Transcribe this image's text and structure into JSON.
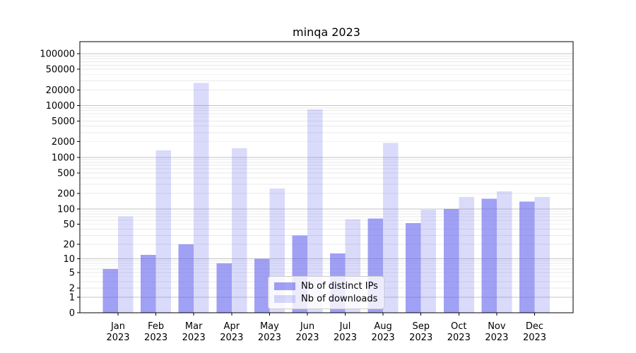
{
  "chart_data": {
    "type": "bar",
    "title": "minqa 2023",
    "categories": [
      "Jan",
      "Feb",
      "Mar",
      "Apr",
      "May",
      "Jun",
      "Jul",
      "Aug",
      "Sep",
      "Oct",
      "Nov",
      "Dec"
    ],
    "year": "2023",
    "series": [
      {
        "name": "Nb of distinct IPs",
        "color": "#6666ee",
        "fill_opacity": 0.62,
        "values": [
          6,
          12,
          20,
          8,
          10,
          30,
          13,
          65,
          53,
          100,
          157,
          138
        ]
      },
      {
        "name": "Nb of downloads",
        "color": "#6666ee",
        "fill_opacity": 0.24,
        "values": [
          71,
          1350,
          27000,
          1500,
          250,
          8400,
          63,
          1900,
          97,
          170,
          220,
          170
        ]
      }
    ],
    "yscale": "log1p",
    "ylim": [
      0,
      176000
    ],
    "ytick_labels": [
      "100000",
      "50000",
      "20000",
      "10000",
      "5000",
      "2000",
      "1000",
      "500",
      "200",
      "100",
      "50",
      "20",
      "10",
      "5",
      "2",
      "1",
      "0"
    ],
    "grid": true,
    "legend_position": "lower center",
    "colors": {
      "major_grid": "#c4c4c4",
      "minor_grid": "#e9e9e9",
      "axis": "#000000"
    }
  }
}
